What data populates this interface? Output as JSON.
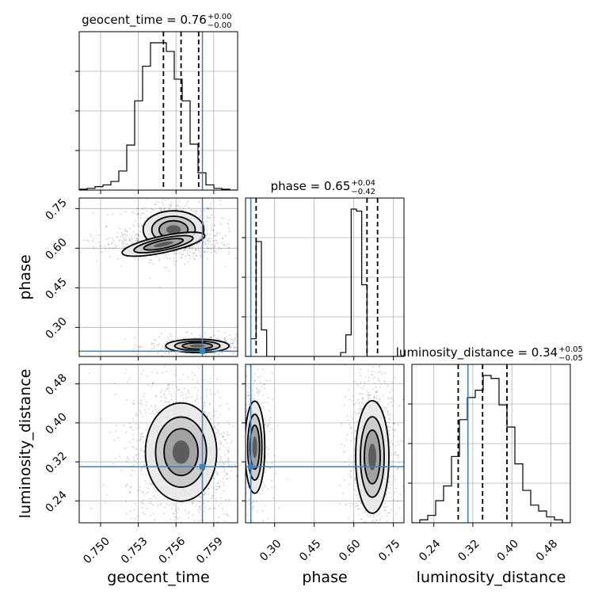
{
  "chart_data": {
    "type": "corner",
    "parameters": [
      "geocent_time",
      "phase",
      "luminosity_distance"
    ],
    "truths": {
      "geocent_time": 0.7581,
      "phase": 0.21,
      "luminosity_distance": 0.31
    },
    "colors": {
      "truth": "#3b7fc4",
      "hist": "#000000",
      "grid": "#b0b0b0",
      "density": "#000000"
    },
    "titles": [
      {
        "param": "geocent_time",
        "text": "geocent_time = 0.76",
        "sup": "+0.00",
        "sub": "−0.00"
      },
      {
        "param": "phase",
        "text": "phase = 0.65",
        "sup": "+0.04",
        "sub": "−0.42"
      },
      {
        "param": "luminosity_distance",
        "text": "luminosity_distance = 0.34",
        "sup": "+0.05",
        "sub": "−0.05"
      }
    ],
    "axes": {
      "geocent_time": {
        "range": [
          0.7483,
          0.7609
        ],
        "ticks": [
          0.75,
          0.753,
          0.756,
          0.759
        ],
        "tick_labels": [
          "0.750",
          "0.753",
          "0.756",
          "0.759"
        ]
      },
      "phase": {
        "range": [
          0.19,
          0.79
        ],
        "ticks": [
          0.3,
          0.45,
          0.6,
          0.75
        ],
        "tick_labels": [
          "0.30",
          "0.45",
          "0.60",
          "0.75"
        ]
      },
      "luminosity_distance": {
        "range": [
          0.195,
          0.52
        ],
        "ticks": [
          0.24,
          0.32,
          0.4,
          0.48
        ],
        "tick_labels": [
          "0.24",
          "0.32",
          "0.40",
          "0.48"
        ]
      }
    },
    "histograms": {
      "geocent_time": {
        "edges_start": 0.7483,
        "bin_width": 0.00063,
        "counts": [
          1,
          2,
          4,
          6,
          10,
          22,
          52,
          103,
          143,
          170,
          170,
          160,
          128,
          103,
          53,
          20,
          6,
          2,
          1,
          0
        ],
        "quantiles": [
          0.755,
          0.7564,
          0.7578
        ]
      },
      "phase": {
        "edges_start": 0.19,
        "bin_width": 0.02,
        "counts": [
          0,
          18,
          117,
          27,
          0,
          0,
          0,
          0,
          0,
          0,
          0,
          0,
          0,
          0,
          0,
          0,
          0,
          0,
          4,
          22,
          150,
          148,
          73,
          0,
          0,
          0,
          0,
          0,
          0,
          0
        ],
        "quantiles": [
          0.23,
          0.65,
          0.69
        ]
      },
      "luminosity_distance": {
        "edges_start": 0.195,
        "bin_width": 0.01625,
        "counts": [
          0,
          2,
          5,
          15,
          25,
          45,
          70,
          85,
          90,
          100,
          98,
          80,
          65,
          40,
          22,
          12,
          8,
          4,
          2,
          0
        ],
        "quantiles": [
          0.29,
          0.34,
          0.39
        ]
      }
    },
    "blobs": {
      "phase_vs_geocent_time": [
        {
          "mx": 0.7558,
          "my": 0.67,
          "sx": 0.00115,
          "sy": 0.034,
          "w": 0.55,
          "rot": 0
        },
        {
          "mx": 0.755,
          "my": 0.615,
          "sx": 0.0016,
          "sy": 0.015,
          "w": 0.25,
          "rot": 0.35
        },
        {
          "mx": 0.7577,
          "my": 0.23,
          "sx": 0.0012,
          "sy": 0.012,
          "w": 0.35,
          "rot": 0
        }
      ],
      "luminosity_distance_vs_geocent_time": [
        {
          "mx": 0.7564,
          "my": 0.34,
          "sx": 0.00135,
          "sy": 0.048,
          "w": 1.0,
          "rot": 0
        }
      ],
      "luminosity_distance_vs_phase": [
        {
          "mx": 0.225,
          "my": 0.35,
          "sx": 0.018,
          "sy": 0.045,
          "w": 0.35,
          "rot": 0
        },
        {
          "mx": 0.67,
          "my": 0.33,
          "sx": 0.03,
          "sy": 0.055,
          "w": 0.65,
          "rot": 0
        }
      ]
    }
  }
}
